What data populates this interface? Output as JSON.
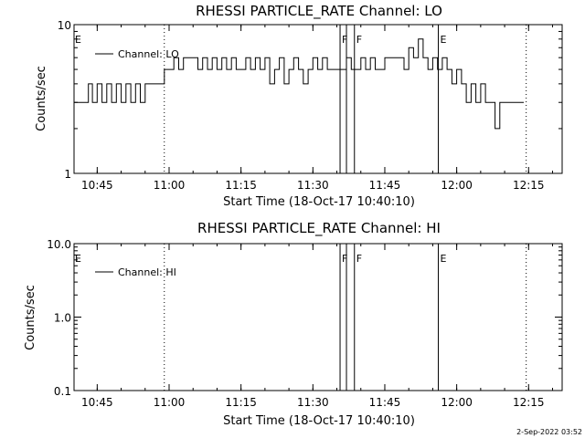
{
  "footer": {
    "timestamp": "2-Sep-2022 03:52"
  },
  "chart_data": [
    {
      "type": "line",
      "title": "RHESSI PARTICLE_RATE Channel: LO",
      "xlabel": "Start Time (18-Oct-17 10:40:10)",
      "ylabel": "Counts/sec",
      "yscale": "log",
      "xlim": [
        "10:40:10",
        "12:22:00"
      ],
      "ylim": [
        1,
        10
      ],
      "xticks": [
        "10:45",
        "11:00",
        "11:15",
        "11:30",
        "11:45",
        "12:00",
        "12:15"
      ],
      "yticks": [
        "1",
        "10"
      ],
      "legend": {
        "label": "Channel: LO",
        "placement": "top-left"
      },
      "series": [
        {
          "name": "Channel: LO",
          "x": [
            "10:40:10",
            "10:43:00",
            "10:43:10",
            "10:44:00",
            "10:45:00",
            "10:46:00",
            "10:47:00",
            "10:48:00",
            "10:49:00",
            "10:50:00",
            "10:51:00",
            "10:52:00",
            "10:53:00",
            "10:54:00",
            "10:55:00",
            "10:56:00",
            "10:57:00",
            "10:58:00",
            "10:59:00",
            "11:00:00",
            "11:01:00",
            "11:02:00",
            "11:03:00",
            "11:04:00",
            "11:05:00",
            "11:06:00",
            "11:07:00",
            "11:08:00",
            "11:09:00",
            "11:10:00",
            "11:11:00",
            "11:12:00",
            "11:13:00",
            "11:14:00",
            "11:15:00",
            "11:16:00",
            "11:17:00",
            "11:18:00",
            "11:19:00",
            "11:20:00",
            "11:21:00",
            "11:22:00",
            "11:23:00",
            "11:24:00",
            "11:25:00",
            "11:26:00",
            "11:27:00",
            "11:28:00",
            "11:29:00",
            "11:30:00",
            "11:31:00",
            "11:32:00",
            "11:33:00",
            "11:34:00",
            "11:35:00",
            "11:36:00",
            "11:37:00",
            "11:38:00",
            "11:39:00",
            "11:40:00",
            "11:41:00",
            "11:42:00",
            "11:43:00",
            "11:44:00",
            "11:45:00",
            "11:46:00",
            "11:47:00",
            "11:48:00",
            "11:49:00",
            "11:50:00",
            "11:51:00",
            "11:52:00",
            "11:53:00",
            "11:54:00",
            "11:55:00",
            "11:56:00",
            "11:57:00",
            "11:58:00",
            "11:59:00",
            "12:00:00",
            "12:01:00",
            "12:02:00",
            "12:03:00",
            "12:04:00",
            "12:05:00",
            "12:06:00",
            "12:07:00",
            "12:08:00",
            "12:09:00",
            "12:10:00",
            "12:11:00",
            "12:12:00",
            "12:13:00",
            "12:14:00"
          ],
          "values": [
            3,
            3,
            4,
            3,
            4,
            3,
            4,
            3,
            4,
            3,
            4,
            3,
            4,
            3,
            4,
            4,
            4,
            4,
            5,
            5,
            6,
            5,
            6,
            6,
            6,
            5,
            6,
            5,
            6,
            5,
            6,
            5,
            6,
            5,
            5,
            6,
            5,
            6,
            5,
            6,
            4,
            5,
            6,
            4,
            5,
            6,
            5,
            4,
            5,
            6,
            5,
            6,
            5,
            5,
            5,
            5,
            6,
            5,
            5,
            6,
            5,
            6,
            5,
            5,
            6,
            6,
            6,
            6,
            5,
            7,
            6,
            8,
            6,
            5,
            6,
            5,
            6,
            5,
            4,
            5,
            4,
            3,
            4,
            3,
            4,
            3,
            3,
            2,
            3,
            3,
            3,
            3,
            3,
            3
          ]
        }
      ],
      "annotations": [
        {
          "time": "10:59:00",
          "style": "dotted"
        },
        {
          "time": "12:14:30",
          "style": "dotted"
        },
        {
          "time": "11:35:40",
          "style": "solid",
          "label": "F"
        },
        {
          "time": "11:37:00",
          "style": "solid"
        },
        {
          "time": "11:38:40",
          "style": "solid",
          "label": "F"
        },
        {
          "time": "11:56:10",
          "style": "solid",
          "label": "E"
        },
        {
          "time": "10:40:10",
          "style": "none",
          "label": "E"
        }
      ]
    },
    {
      "type": "line",
      "title": "RHESSI PARTICLE_RATE Channel: HI",
      "xlabel": "Start Time (18-Oct-17 10:40:10)",
      "ylabel": "Counts/sec",
      "yscale": "log",
      "xlim": [
        "10:40:10",
        "12:22:00"
      ],
      "ylim": [
        0.1,
        10
      ],
      "xticks": [
        "10:45",
        "11:00",
        "11:15",
        "11:30",
        "11:45",
        "12:00",
        "12:15"
      ],
      "yticks": [
        "0.1",
        "1.0",
        "10.0"
      ],
      "legend": {
        "label": "Channel: HI",
        "placement": "top-left"
      },
      "series": [
        {
          "name": "Channel: HI",
          "x": [],
          "values": []
        }
      ],
      "annotations": [
        {
          "time": "10:59:00",
          "style": "dotted"
        },
        {
          "time": "12:14:30",
          "style": "dotted"
        },
        {
          "time": "11:35:40",
          "style": "solid",
          "label": "F"
        },
        {
          "time": "11:37:00",
          "style": "solid"
        },
        {
          "time": "11:38:40",
          "style": "solid",
          "label": "F"
        },
        {
          "time": "11:56:10",
          "style": "solid",
          "label": "E"
        },
        {
          "time": "10:40:10",
          "style": "none",
          "label": "E"
        }
      ]
    }
  ]
}
